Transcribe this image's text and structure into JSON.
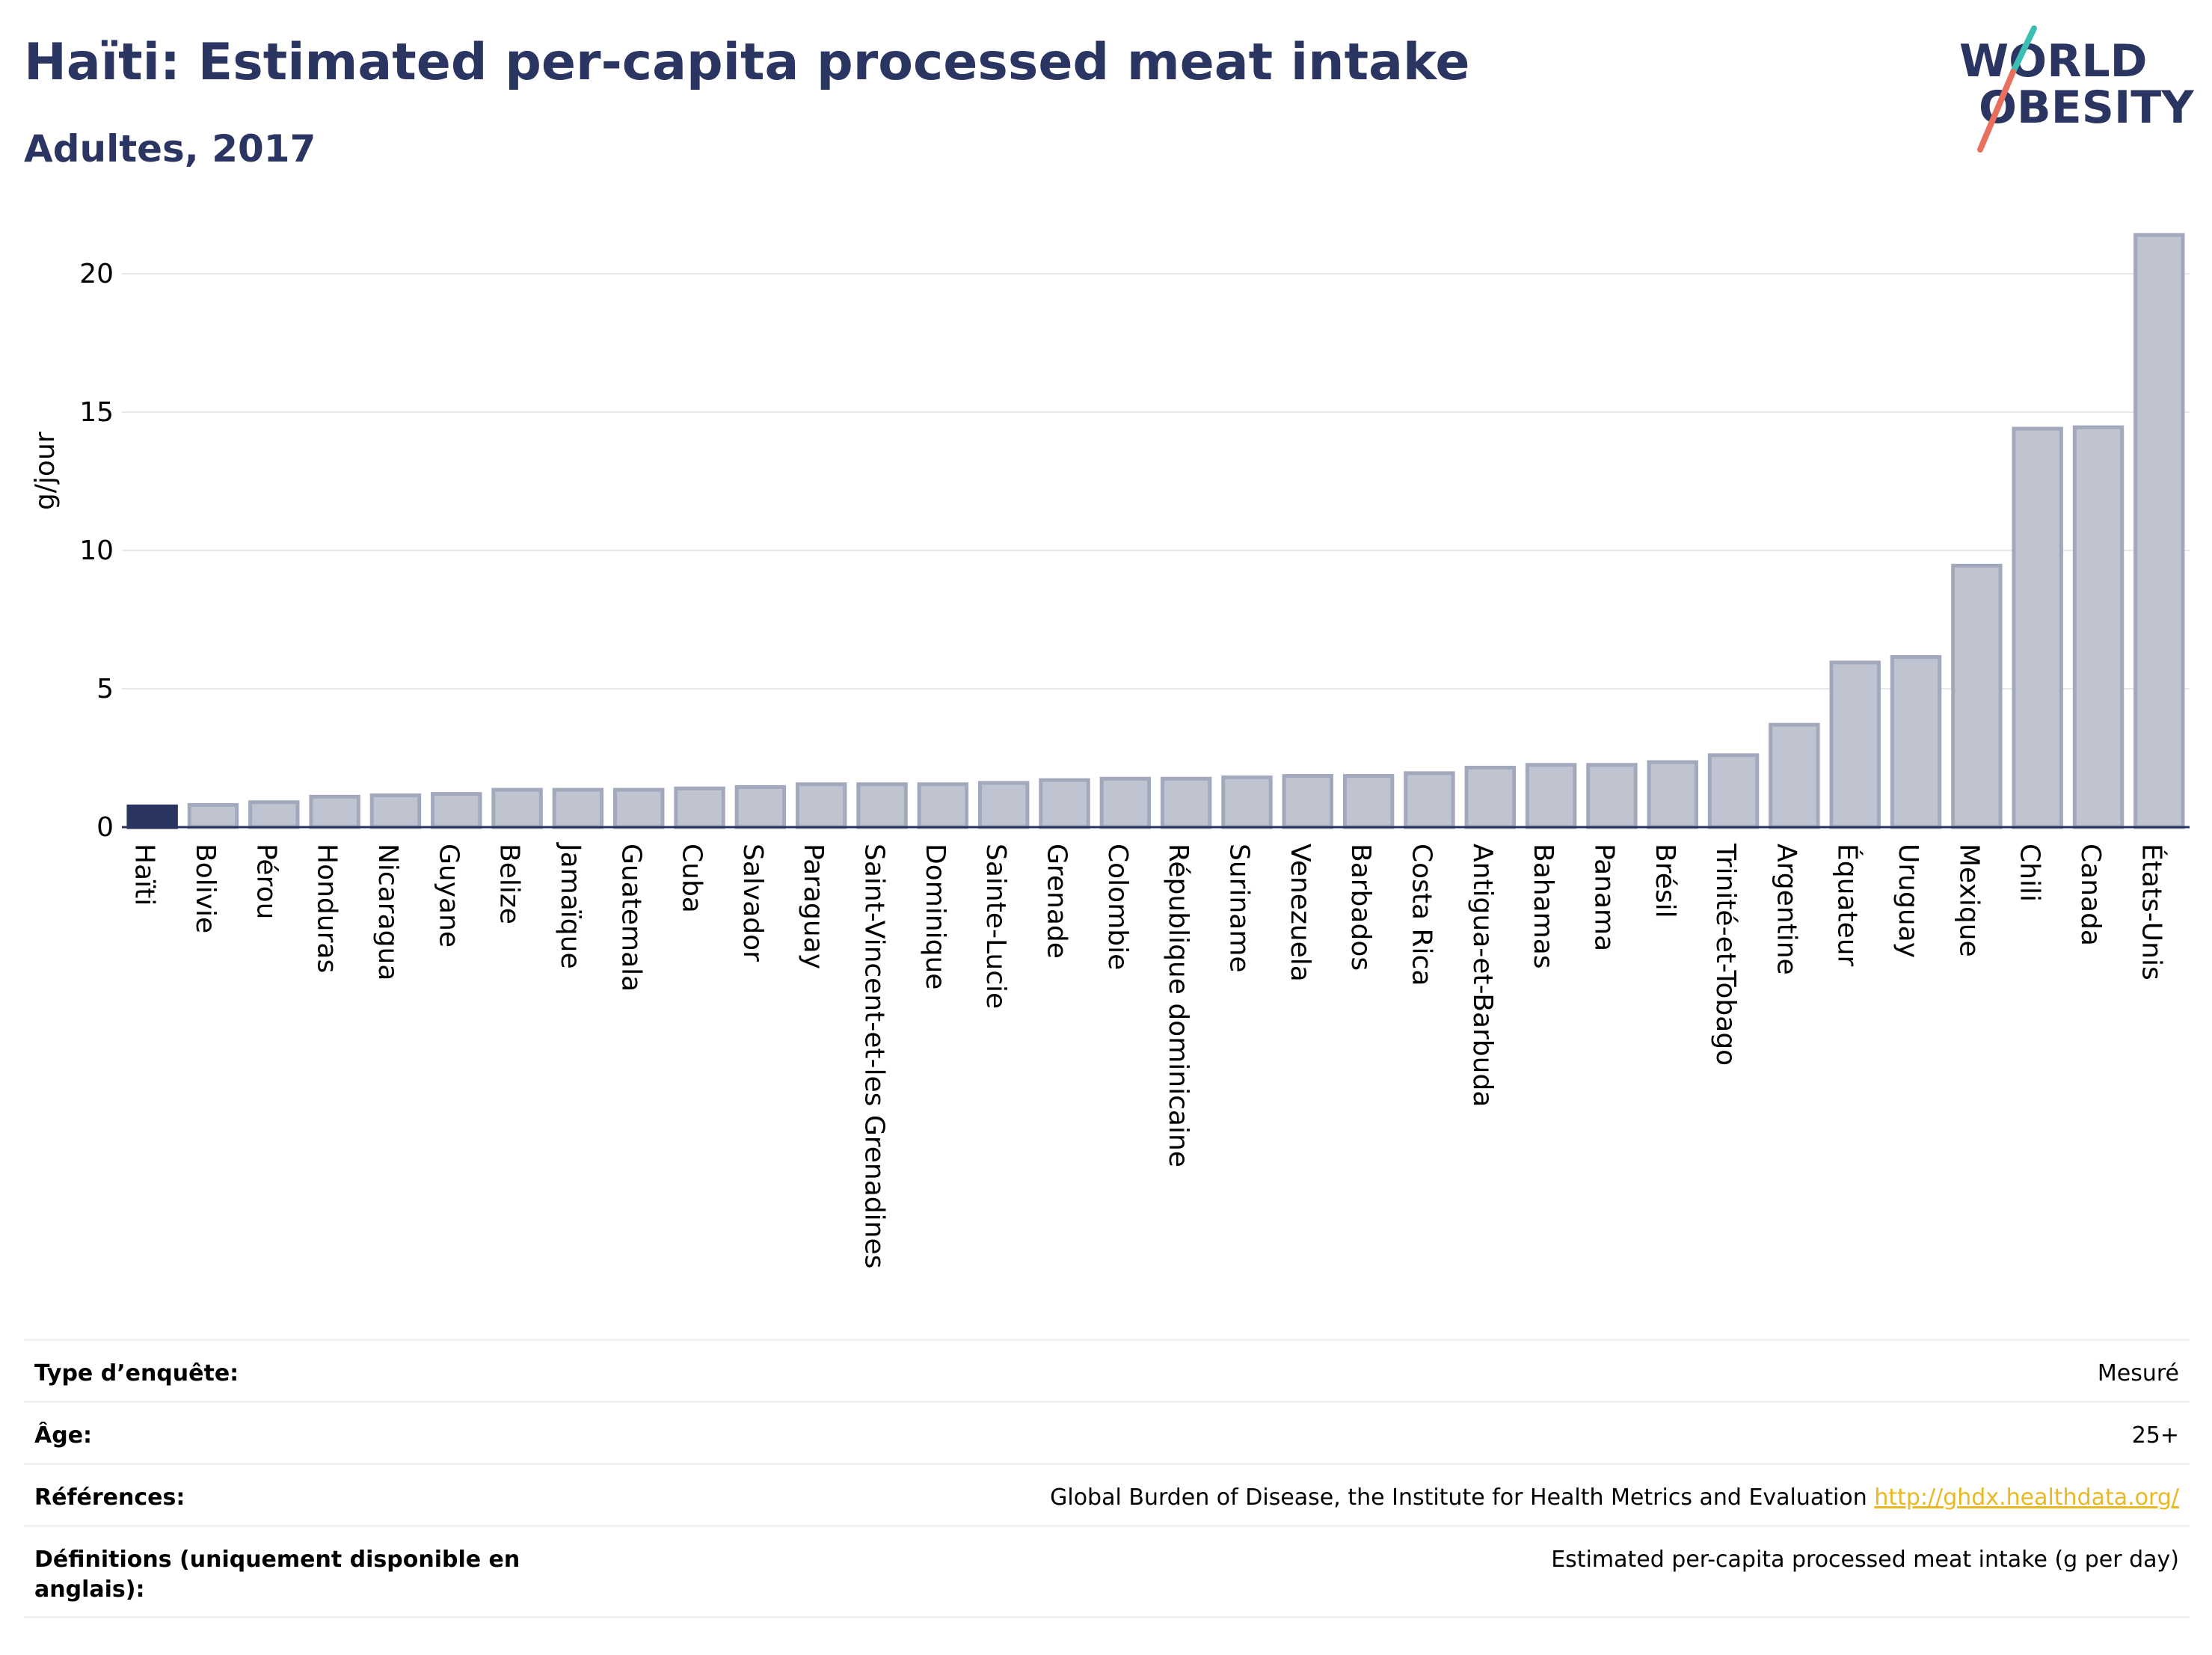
{
  "header": {
    "title": "Haïti: Estimated per-capita processed meat intake",
    "subtitle": "Adultes, 2017"
  },
  "logo": {
    "line1": "WORLD",
    "line2": "OBESITY"
  },
  "colors": {
    "highlight_bar": "#2b3561",
    "bar_fill": "#c0c4d0",
    "bar_stroke": "#a3a9bd",
    "title": "#2b3561",
    "grid": "#e6e8ee",
    "link": "#e9b824",
    "logo_teal": "#3bbfb4",
    "logo_coral": "#e8705e"
  },
  "chart_data": {
    "type": "bar",
    "ylabel": "g/jour",
    "ylim": [
      0,
      22.5
    ],
    "yticks": [
      "0",
      "5",
      "10",
      "15",
      "20"
    ],
    "ytick_values": [
      0,
      5,
      10,
      15,
      20
    ],
    "grid": true,
    "highlight": "Haïti",
    "categories": [
      "Haïti",
      "Bolivie",
      "Pérou",
      "Honduras",
      "Nicaragua",
      "Guyane",
      "Belize",
      "Jamaïque",
      "Guatemala",
      "Cuba",
      "Salvador",
      "Paraguay",
      "Saint-Vincent-et-les Grenadines",
      "Dominique",
      "Sainte-Lucie",
      "Grenade",
      "Colombie",
      "République dominicaine",
      "Suriname",
      "Venezuela",
      "Barbados",
      "Costa Rica",
      "Antigua-et-Barbuda",
      "Bahamas",
      "Panama",
      "Brésil",
      "Trinité-et-Tobago",
      "Argentine",
      "Équateur",
      "Uruguay",
      "Mexique",
      "Chili",
      "Canada",
      "États-Unis"
    ],
    "values": [
      0.75,
      0.8,
      0.9,
      1.1,
      1.15,
      1.2,
      1.35,
      1.35,
      1.35,
      1.4,
      1.45,
      1.55,
      1.55,
      1.55,
      1.6,
      1.7,
      1.75,
      1.75,
      1.8,
      1.85,
      1.85,
      1.95,
      2.15,
      2.25,
      2.25,
      2.35,
      2.6,
      3.7,
      5.95,
      6.15,
      9.45,
      14.4,
      14.45,
      21.4
    ]
  },
  "info_table": [
    {
      "label": "Type d’enquête:",
      "value": "Mesuré"
    },
    {
      "label": "Âge:",
      "value": "25+"
    },
    {
      "label": "Références:",
      "value": "Global Burden of Disease, the Institute for Health Metrics and Evaluation",
      "link": "http://ghdx.healthdata.org/"
    },
    {
      "label": "Définitions (uniquement disponible en anglais):",
      "value": "Estimated per-capita processed meat intake (g per day)"
    }
  ]
}
